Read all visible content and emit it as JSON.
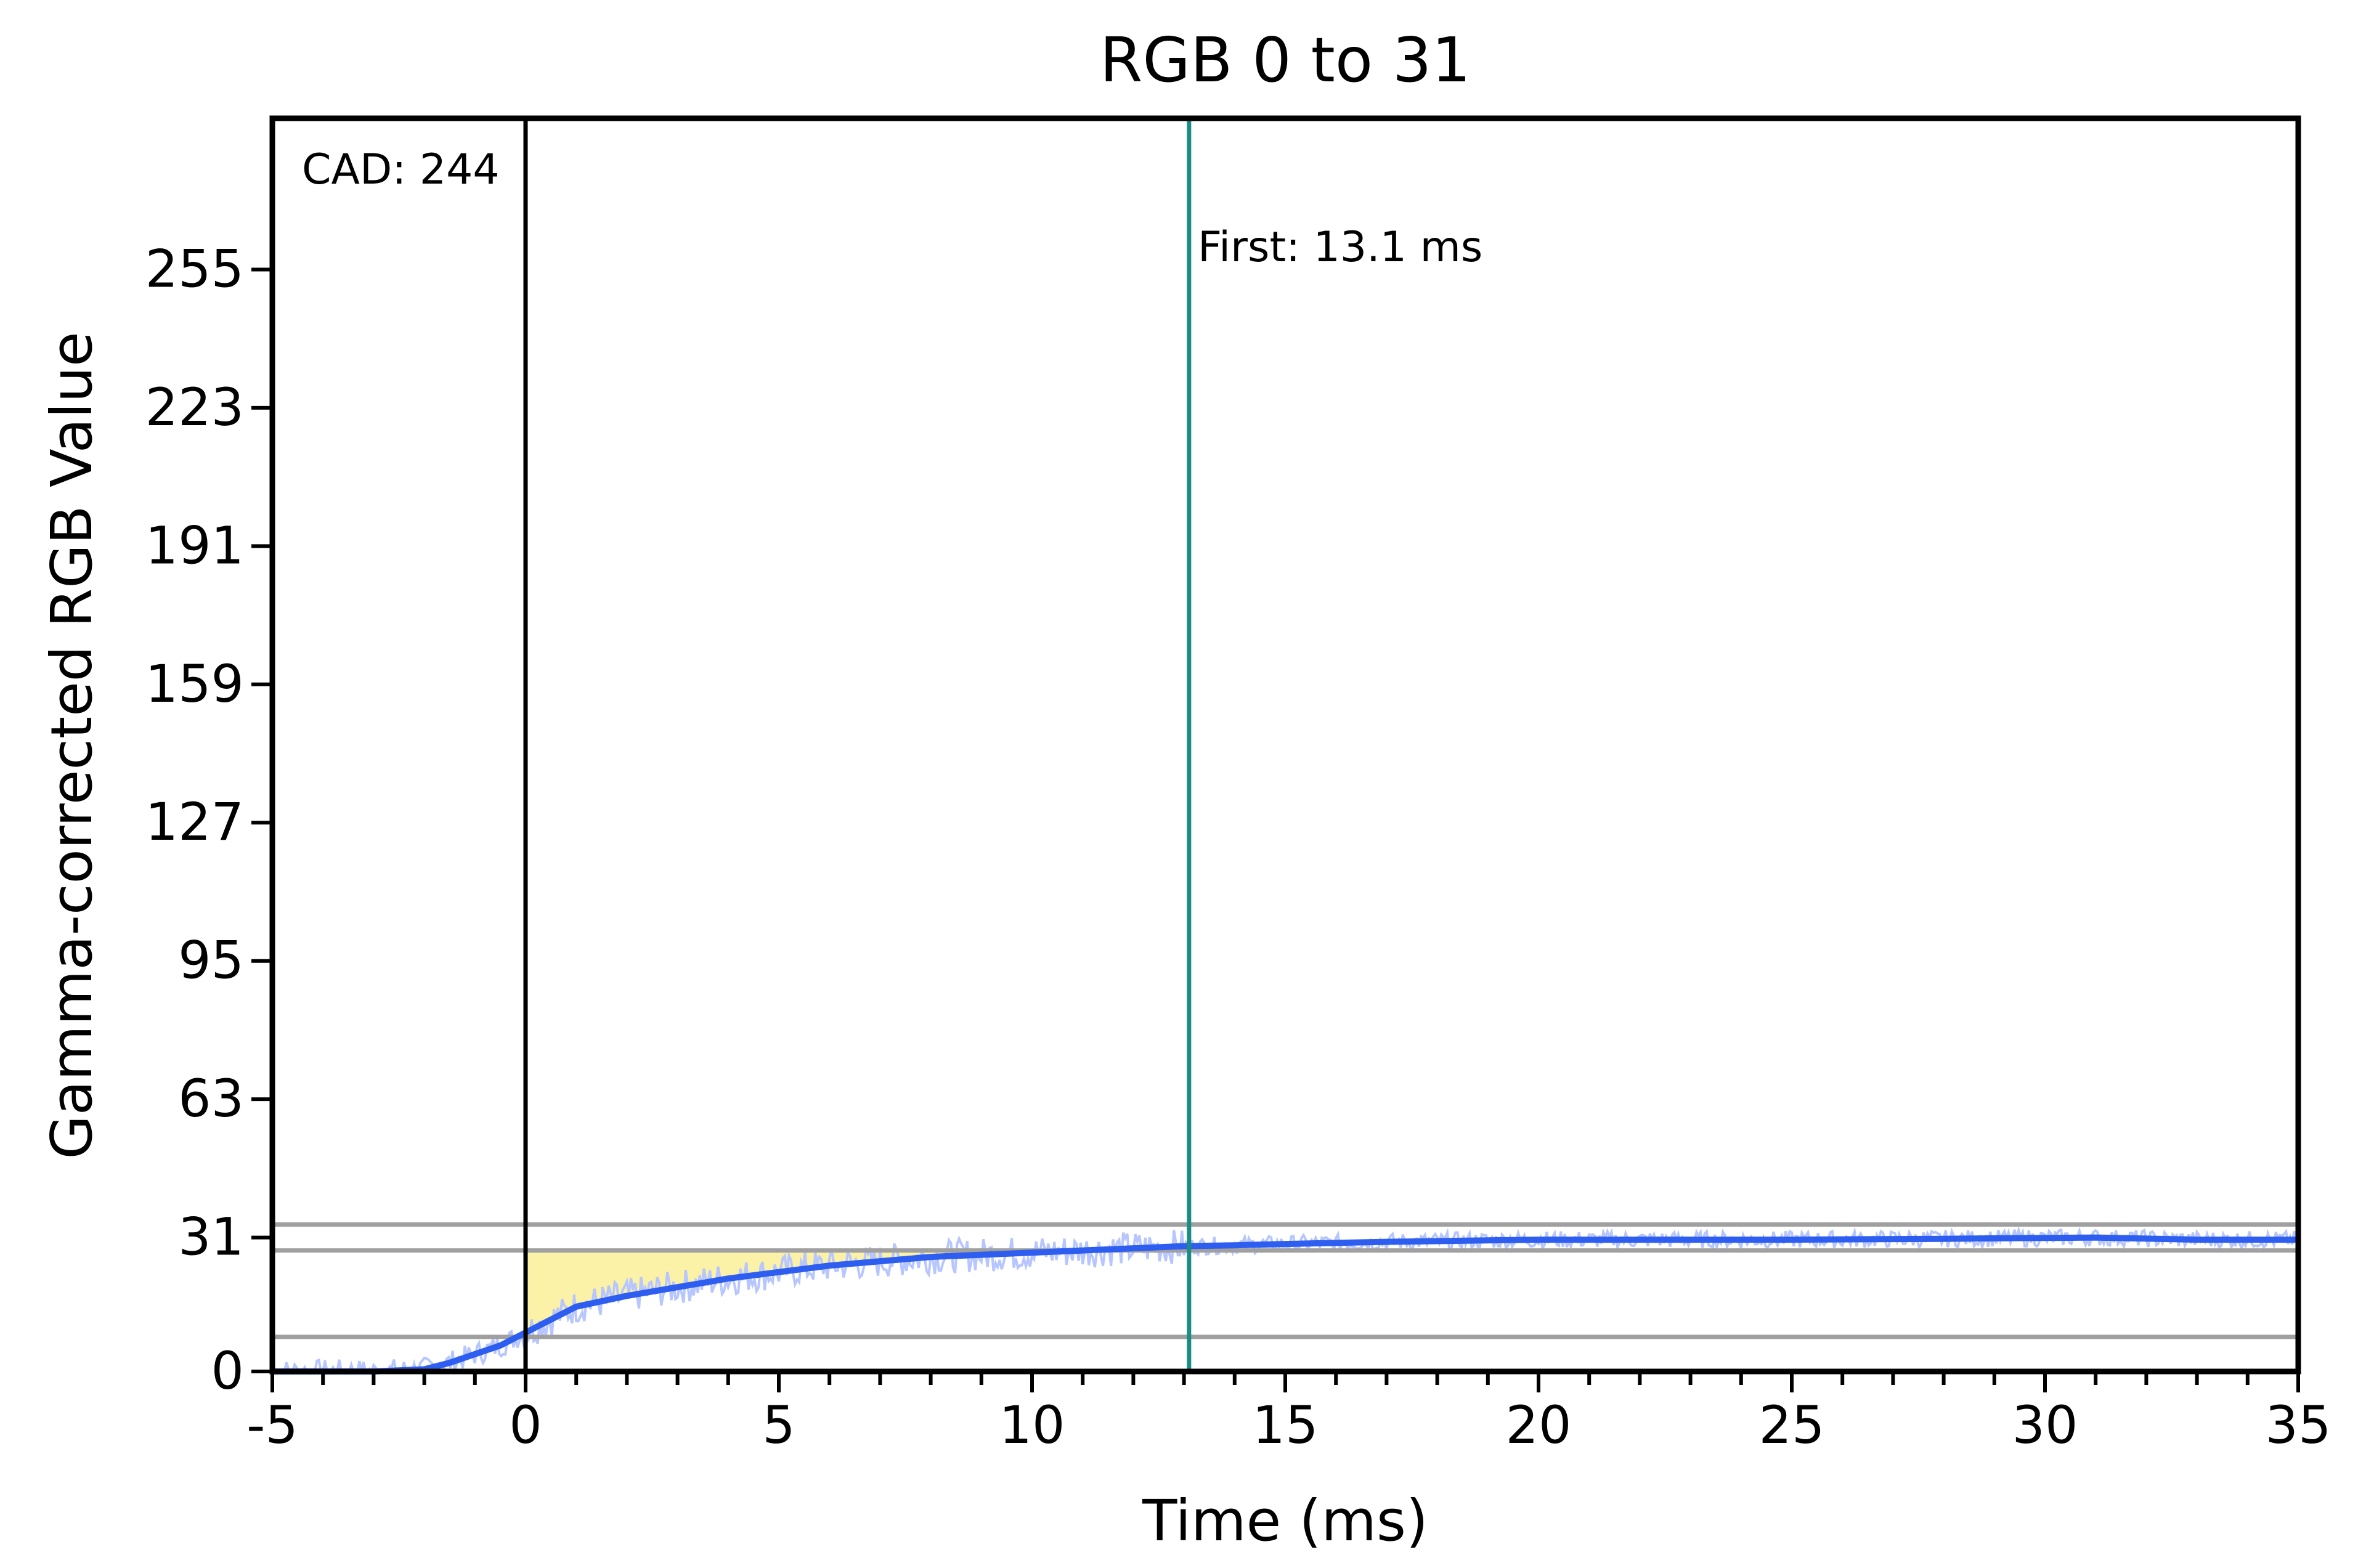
{
  "chart_data": {
    "type": "line",
    "title": "RGB 0 to 31",
    "xlabel": "Time (ms)",
    "ylabel": "Gamma-corrected RGB Value",
    "xlim": [
      -5,
      35
    ],
    "ylim": [
      0,
      290
    ],
    "x_ticks": [
      -5,
      0,
      5,
      10,
      15,
      20,
      25,
      30,
      35
    ],
    "x_tick_labels": [
      "-5",
      "0",
      "5",
      "10",
      "15",
      "20",
      "25",
      "30",
      "35"
    ],
    "x_minor_tick_step": 1,
    "y_ticks": [
      0,
      31,
      63,
      95,
      127,
      159,
      191,
      223,
      255
    ],
    "y_tick_labels": [
      "0",
      "31",
      "63",
      "95",
      "127",
      "159",
      "191",
      "223",
      "255"
    ],
    "grid": false,
    "reference_lines": {
      "horizontal": [
        8,
        28,
        34
      ],
      "cad_x": 0,
      "first_x": 13.1
    },
    "annotations": {
      "cad": "CAD: 244",
      "first": "First: 13.1 ms"
    },
    "series": [
      {
        "role": "smoothed",
        "color": "#2e5ef0",
        "x": [
          -5,
          -4,
          -3,
          -2,
          -1.5,
          -1,
          -0.5,
          0,
          0.5,
          1,
          2,
          3,
          4,
          5,
          6,
          7,
          8,
          9,
          10,
          11,
          12,
          13,
          14,
          15,
          17,
          20,
          22,
          25,
          28,
          31,
          33,
          35
        ],
        "y": [
          0,
          0,
          0,
          0.5,
          2,
          4,
          6,
          9,
          12,
          15,
          17.5,
          19.5,
          21.5,
          23,
          24.5,
          25.5,
          26.5,
          27,
          27.5,
          28,
          28.5,
          29,
          29.2,
          29.5,
          30,
          30.5,
          30.5,
          30.5,
          30.7,
          31,
          30.5,
          30.5
        ]
      },
      {
        "role": "raw",
        "color": "#b7c6ff",
        "noise_amplitude": 4
      }
    ],
    "fill": {
      "color": "#fbf2a8",
      "between": "smoothed curve and y=28",
      "x_range": [
        0,
        13.1
      ]
    }
  }
}
